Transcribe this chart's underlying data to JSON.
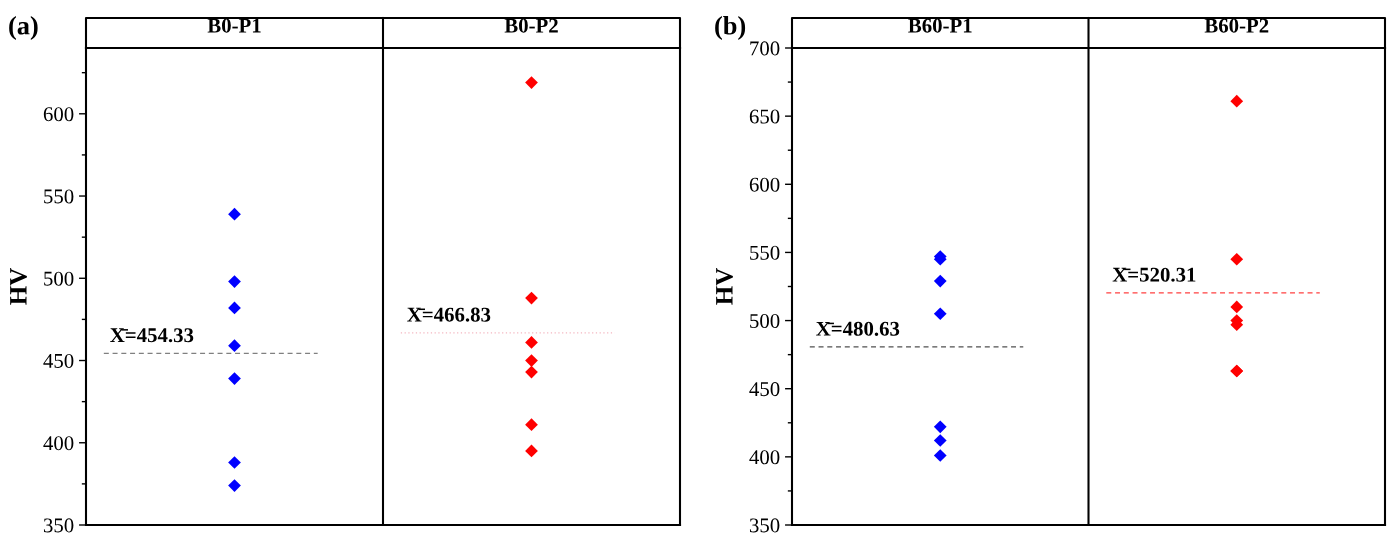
{
  "chart_data": [
    {
      "type": "scatter",
      "ylabel": "HV",
      "annotations": [
        "(a)"
      ],
      "categories": [
        "B0-P1",
        "B0-P2"
      ],
      "marker": "diamond",
      "legend": false,
      "grid": false,
      "series": [
        {
          "color": "#0000ff",
          "x": [
            "B0-P1",
            "B0-P1",
            "B0-P1",
            "B0-P1",
            "B0-P1",
            "B0-P1",
            "B0-P1"
          ],
          "values": [
            388,
            439,
            498,
            482,
            374,
            539,
            459
          ]
        },
        {
          "color": "#ff0000",
          "x": [
            "B0-P2",
            "B0-P2",
            "B0-P2",
            "B0-P2",
            "B0-P2",
            "B0-P2",
            "B0-P2"
          ],
          "values": [
            619,
            450,
            461,
            395,
            488,
            443,
            411
          ]
        }
      ],
      "ylim": [
        350,
        640
      ],
      "yticks": [
        350,
        {
          "value": 375,
          "label": null
        },
        400,
        {
          "value": 425,
          "label": null
        },
        450,
        {
          "value": 475,
          "label": null
        },
        500,
        {
          "value": 525,
          "label": null
        },
        550,
        {
          "value": 575,
          "label": null
        },
        600,
        {
          "value": 625,
          "label": null
        }
      ],
      "ref_lines": [
        {
          "axis": "y",
          "value": 454.33,
          "label": "X̄=454.33",
          "color": "#808080",
          "line_style": "dashed"
        },
        {
          "axis": "y",
          "value": 466.83,
          "label": "X̄=466.83",
          "color": "#f4b6c0",
          "line_style": "dotted"
        }
      ]
    },
    {
      "type": "scatter",
      "ylabel": "HV",
      "annotations": [
        "(b)"
      ],
      "categories": [
        "B60-P1",
        "B60-P2"
      ],
      "marker": "diamond",
      "legend": false,
      "grid": false,
      "series": [
        {
          "color": "#0000ff",
          "x": [
            "B60-P1",
            "B60-P1",
            "B60-P1",
            "B60-P1",
            "B60-P1",
            "B60-P1",
            "B60-P1"
          ],
          "values": [
            529,
            412,
            422,
            547,
            545,
            505,
            401
          ]
        },
        {
          "color": "#ff0000",
          "x": [
            "B60-P2",
            "B60-P2",
            "B60-P2",
            "B60-P2",
            "B60-P2",
            "B60-P2",
            "B60-P2"
          ],
          "values": [
            510,
            661,
            497,
            463,
            500,
            463,
            545
          ]
        }
      ],
      "ylim": [
        350,
        700
      ],
      "yticks": [
        350,
        {
          "value": 375,
          "label": null
        },
        400,
        {
          "value": 425,
          "label": null
        },
        450,
        {
          "value": 475,
          "label": null
        },
        500,
        {
          "value": 525,
          "label": null
        },
        550,
        {
          "value": 575,
          "label": null
        },
        600,
        {
          "value": 625,
          "label": null
        },
        650,
        {
          "value": 675,
          "label": null
        },
        700
      ],
      "ref_lines": [
        {
          "axis": "y",
          "value": 480.63,
          "label": "X̄=480.63",
          "color": "#505050",
          "line_style": "dashed"
        },
        {
          "axis": "y",
          "value": 520.31,
          "label": "X̄=520.31",
          "color": "#ff4040",
          "line_style": "dashed"
        }
      ]
    }
  ]
}
